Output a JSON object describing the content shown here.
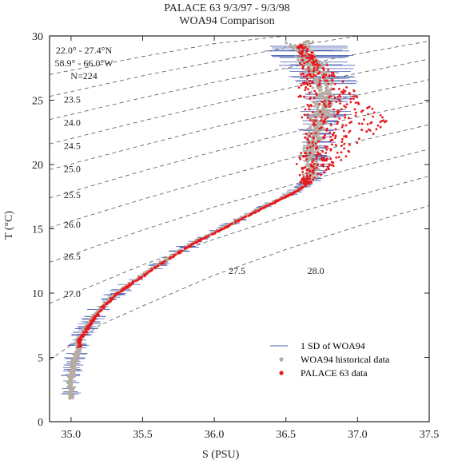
{
  "header": {
    "title": "PALACE 63   9/3/97 - 9/3/98",
    "subtitle": "WOA94 Comparison"
  },
  "region": {
    "lat": "22.0° - 27.4°N",
    "lon": "58.9° - 66.0°W",
    "n": "N=224"
  },
  "legend": {
    "sd": "1 SD of WOA94",
    "historical": "WOA94 historical data",
    "palace": "PALACE 63 data"
  },
  "colors": {
    "palace": "#e8191c",
    "historical": "#b6aca2",
    "sd": "#4a5fb0",
    "isopycnal": "#555555",
    "frame": "#222222"
  },
  "chart_data": {
    "type": "scatter",
    "title": "PALACE 63   9/3/97 - 9/3/98",
    "subtitle": "WOA94 Comparison",
    "xlabel": "S (PSU)",
    "ylabel": "T (°C)",
    "xlim": [
      34.85,
      37.5
    ],
    "ylim": [
      0,
      30
    ],
    "xticks": [
      "35.0",
      "35.5",
      "36.0",
      "36.5",
      "37.0",
      "37.5"
    ],
    "xtick_values": [
      35.0,
      35.5,
      36.0,
      36.5,
      37.0,
      37.5
    ],
    "yticks": [
      "0",
      "5",
      "10",
      "15",
      "20",
      "25",
      "30"
    ],
    "ytick_values": [
      0,
      5,
      10,
      15,
      20,
      25,
      30
    ],
    "legend_position": "bottom-right",
    "isopycnals": [
      {
        "label": "23.5",
        "points": [
          [
            34.85,
            27.0
          ],
          [
            35.5,
            28.4
          ],
          [
            36.0,
            29.4
          ],
          [
            36.5,
            30.0
          ]
        ]
      },
      {
        "label": "24.0",
        "points": [
          [
            34.85,
            25.3
          ],
          [
            35.5,
            26.9
          ],
          [
            36.0,
            28.0
          ],
          [
            36.5,
            29.1
          ],
          [
            37.0,
            30.0
          ]
        ]
      },
      {
        "label": "24.5",
        "points": [
          [
            34.85,
            23.5
          ],
          [
            35.5,
            25.2
          ],
          [
            36.0,
            26.4
          ],
          [
            36.5,
            27.5
          ],
          [
            37.0,
            28.6
          ],
          [
            37.5,
            29.6
          ]
        ]
      },
      {
        "label": "25.0",
        "points": [
          [
            34.85,
            21.6
          ],
          [
            35.5,
            23.4
          ],
          [
            36.0,
            24.7
          ],
          [
            36.5,
            25.9
          ],
          [
            37.0,
            27.1
          ],
          [
            37.5,
            28.2
          ]
        ]
      },
      {
        "label": "25.5",
        "points": [
          [
            34.85,
            19.6
          ],
          [
            35.5,
            21.5
          ],
          [
            36.0,
            22.9
          ],
          [
            36.5,
            24.2
          ],
          [
            37.0,
            25.4
          ],
          [
            37.5,
            26.6
          ]
        ]
      },
      {
        "label": "26.0",
        "points": [
          [
            34.85,
            17.4
          ],
          [
            35.5,
            19.5
          ],
          [
            36.0,
            21.0
          ],
          [
            36.5,
            22.4
          ],
          [
            37.0,
            23.7
          ],
          [
            37.5,
            24.9
          ]
        ]
      },
      {
        "label": "26.5",
        "points": [
          [
            34.85,
            15.1
          ],
          [
            35.5,
            17.3
          ],
          [
            36.0,
            18.9
          ],
          [
            36.5,
            20.4
          ],
          [
            37.0,
            21.8
          ],
          [
            37.5,
            23.1
          ]
        ]
      },
      {
        "label": "27.0",
        "points": [
          [
            34.85,
            12.4
          ],
          [
            35.5,
            14.9
          ],
          [
            36.0,
            16.7
          ],
          [
            36.5,
            18.3
          ],
          [
            37.0,
            19.8
          ],
          [
            37.5,
            21.2
          ]
        ]
      },
      {
        "label": "27.5",
        "points": [
          [
            34.85,
            9.2
          ],
          [
            35.5,
            12.2
          ],
          [
            36.0,
            14.2
          ],
          [
            36.5,
            16.0
          ],
          [
            37.0,
            17.6
          ],
          [
            37.5,
            19.1
          ]
        ]
      },
      {
        "label": "28.0",
        "points": [
          [
            34.85,
            4.8
          ],
          [
            35.2,
            7.5
          ],
          [
            35.5,
            9.0
          ],
          [
            36.0,
            11.4
          ],
          [
            36.5,
            13.4
          ],
          [
            37.0,
            15.2
          ],
          [
            37.5,
            16.8
          ]
        ]
      }
    ],
    "isopycnal_label_anchors": [
      {
        "label": "23.5",
        "x": 34.95,
        "y": 24.8
      },
      {
        "label": "24.0",
        "x": 34.95,
        "y": 23.0
      },
      {
        "label": "24.5",
        "x": 34.95,
        "y": 21.2
      },
      {
        "label": "25.0",
        "x": 34.95,
        "y": 19.4
      },
      {
        "label": "25.5",
        "x": 34.95,
        "y": 17.4
      },
      {
        "label": "26.0",
        "x": 34.95,
        "y": 15.1
      },
      {
        "label": "26.5",
        "x": 34.95,
        "y": 12.6
      },
      {
        "label": "27.0",
        "x": 34.95,
        "y": 9.7
      },
      {
        "label": "27.5",
        "x": 36.1,
        "y": 11.5
      },
      {
        "label": "28.0",
        "x": 36.65,
        "y": 11.5
      }
    ],
    "ts_profile": [
      [
        35.0,
        2.2
      ],
      [
        35.0,
        3.5
      ],
      [
        35.02,
        4.5
      ],
      [
        35.05,
        5.5
      ],
      [
        35.05,
        6.3
      ],
      [
        35.1,
        7.2
      ],
      [
        35.15,
        8.0
      ],
      [
        35.22,
        9.0
      ],
      [
        35.32,
        10.0
      ],
      [
        35.45,
        11.0
      ],
      [
        35.58,
        12.0
      ],
      [
        35.72,
        13.0
      ],
      [
        35.87,
        14.0
      ],
      [
        36.05,
        15.0
      ],
      [
        36.22,
        16.0
      ],
      [
        36.4,
        17.0
      ],
      [
        36.58,
        18.0
      ],
      [
        36.7,
        19.0
      ],
      [
        36.72,
        20.0
      ],
      [
        36.7,
        21.0
      ],
      [
        36.72,
        22.0
      ],
      [
        36.75,
        23.0
      ],
      [
        36.78,
        24.0
      ],
      [
        36.8,
        25.0
      ],
      [
        36.8,
        26.0
      ],
      [
        36.75,
        27.0
      ],
      [
        36.7,
        28.0
      ],
      [
        36.65,
        29.0
      ]
    ],
    "series": [
      {
        "name": "1 SD of WOA94",
        "color": "#4a5fb0",
        "note_values": "horizontal bars around historical profile, half-width in PSU",
        "half_width_by_temperature": [
          [
            3,
            0.05
          ],
          [
            6,
            0.06
          ],
          [
            10,
            0.06
          ],
          [
            14,
            0.05
          ],
          [
            18,
            0.04
          ],
          [
            22,
            0.1
          ],
          [
            25,
            0.14
          ],
          [
            27,
            0.18
          ],
          [
            29,
            0.22
          ]
        ]
      },
      {
        "name": "WOA94 historical data",
        "color": "#b6aca2",
        "temperature_range": [
          1.8,
          29.6
        ],
        "salinity_range": [
          34.9,
          37.0
        ]
      },
      {
        "name": "PALACE 63 data",
        "color": "#e8191c",
        "temperature_range": [
          5.8,
          29.4
        ],
        "salinity_range": [
          34.95,
          37.3
        ]
      }
    ]
  }
}
